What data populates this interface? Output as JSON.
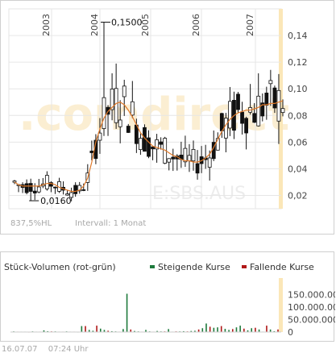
{
  "chart_data": [
    {
      "type": "candlestick",
      "title": "",
      "x_tick_labels": [
        "2003",
        "2004",
        "2005",
        "2006",
        "2007"
      ],
      "y_ticks": [
        "0,02",
        "0,04",
        "0,06",
        "0,08",
        "0,10",
        "0,12",
        "0,14"
      ],
      "ylim": [
        0.01,
        0.16
      ],
      "annotations": {
        "high_label": "0,1500",
        "low_label": "0,0160"
      },
      "info_left": "837,5%HL",
      "interval": "Intervall: 1 Monat",
      "watermark_top": ".comdirect",
      "watermark_bottom": "E:SBS.AUS",
      "grid": true,
      "moving_average": [
        0.03,
        0.028,
        0.027,
        0.027,
        0.027,
        0.027,
        0.027,
        0.028,
        0.029,
        0.029,
        0.028,
        0.026,
        0.025,
        0.024,
        0.023,
        0.023,
        0.024,
        0.027,
        0.033,
        0.045,
        0.06,
        0.07,
        0.078,
        0.083,
        0.086,
        0.089,
        0.09,
        0.088,
        0.084,
        0.079,
        0.073,
        0.067,
        0.063,
        0.06,
        0.057,
        0.056,
        0.055,
        0.054,
        0.052,
        0.05,
        0.049,
        0.047,
        0.046,
        0.046,
        0.045,
        0.045,
        0.046,
        0.048,
        0.051,
        0.056,
        0.062,
        0.068,
        0.073,
        0.077,
        0.08,
        0.082,
        0.083,
        0.084,
        0.084,
        0.085,
        0.086,
        0.088,
        0.088,
        0.089,
        0.089,
        0.09,
        0.091
      ]
    },
    {
      "type": "bar",
      "title": "Stück-Volumen (rot-grün)",
      "legend": [
        {
          "label": "Steigende Kurse",
          "color": "#1e7a3c"
        },
        {
          "label": "Fallende Kurse",
          "color": "#b01818"
        }
      ],
      "y_ticks": [
        "0",
        "50.000.000",
        "100.000.000",
        "150.000.000"
      ],
      "ylim": [
        0,
        190000000
      ],
      "up_color": "#1e7a3c",
      "down_color": "#b01818"
    }
  ],
  "footer": {
    "date": "16.07.07",
    "time": "07:24 Uhr"
  }
}
